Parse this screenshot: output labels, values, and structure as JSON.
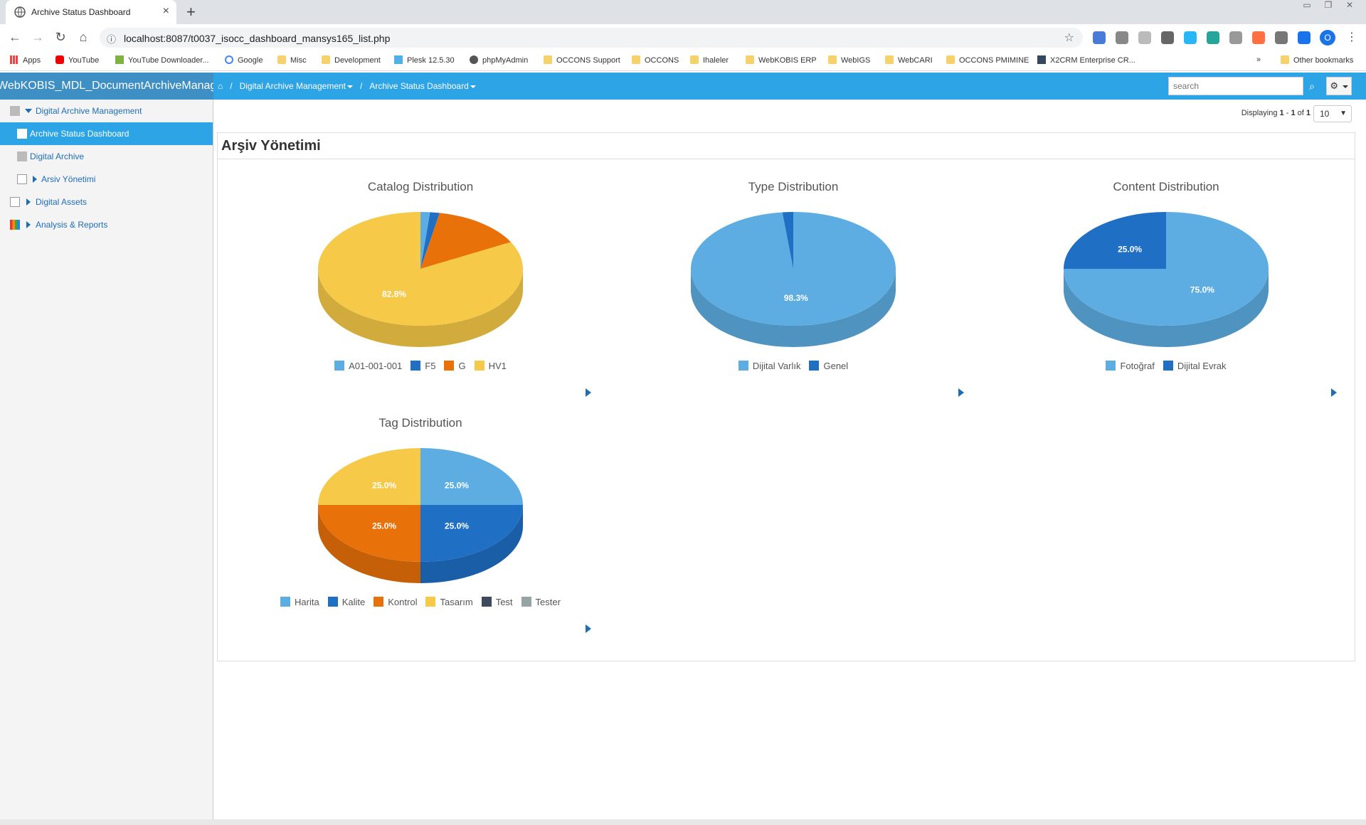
{
  "browser": {
    "tab_title": "Archive Status Dashboard",
    "url": "localhost:8087/t0037_isocc_dashboard_mansys165_list.php",
    "profile_initial": "O",
    "bookmarks": [
      "Apps",
      "YouTube",
      "YouTube Downloader...",
      "Google",
      "Misc",
      "Development",
      "Plesk 12.5.30",
      "phpMyAdmin",
      "OCCONS Support",
      "OCCONS",
      "Ihaleler",
      "WebKOBIS ERP",
      "WebIGS",
      "WebCARI",
      "OCCONS PMIMINE",
      "X2CRM Enterprise CR...",
      "»",
      "Other bookmarks"
    ]
  },
  "app": {
    "brand": "WebKOBIS_MDL_DocumentArchiveManagement",
    "breadcrumb": {
      "home_icon": "home-icon",
      "item1": "Digital Archive Management",
      "item2": "Archive Status Dashboard"
    },
    "search_placeholder": "search",
    "accent": "#2da4e6"
  },
  "sidebar": {
    "items": [
      {
        "label": "Digital Archive Management"
      },
      {
        "label": "Archive Status Dashboard"
      },
      {
        "label": "Digital Archive"
      },
      {
        "label": "Arsiv Yönetimi"
      },
      {
        "label": "Digital Assets"
      },
      {
        "label": "Analysis & Reports"
      }
    ]
  },
  "pagination": {
    "prefix": "Displaying ",
    "from": "1",
    "dash": " - ",
    "to": "1",
    "of": " of ",
    "total": "1",
    "page_size": "10"
  },
  "panel": {
    "title": "Arşiv Yönetimi"
  },
  "chart_data": [
    {
      "type": "pie",
      "title": "Catalog Distribution",
      "categories": [
        "A01-001-001",
        "F5",
        "G",
        "HV1"
      ],
      "values": [
        1.5,
        1.5,
        14.2,
        82.8
      ],
      "labels": [
        "",
        "",
        "",
        "82.8%"
      ],
      "colors": [
        "#5dade2",
        "#1f6fc5",
        "#e8710a",
        "#f7c948"
      ],
      "legend": "bottom"
    },
    {
      "type": "pie",
      "title": "Type Distribution",
      "categories": [
        "Dijital Varlık",
        "Genel"
      ],
      "values": [
        98.3,
        1.7
      ],
      "labels": [
        "98.3%",
        ""
      ],
      "colors": [
        "#5dade2",
        "#1f6fc5"
      ],
      "legend": "bottom"
    },
    {
      "type": "pie",
      "title": "Content Distribution",
      "categories": [
        "Fotoğraf",
        "Dijital Evrak"
      ],
      "values": [
        75.0,
        25.0
      ],
      "labels": [
        "75.0%",
        "25.0%"
      ],
      "colors": [
        "#5dade2",
        "#1f6fc5"
      ],
      "legend": "bottom"
    },
    {
      "type": "pie",
      "title": "Tag Distribution",
      "categories": [
        "Harita",
        "Kalite",
        "Kontrol",
        "Tasarım",
        "Test",
        "Tester"
      ],
      "values": [
        25.0,
        25.0,
        25.0,
        25.0,
        0,
        0
      ],
      "labels": [
        "25.0%",
        "25.0%",
        "25.0%",
        "25.0%",
        "",
        ""
      ],
      "colors": [
        "#5dade2",
        "#1f6fc5",
        "#e8710a",
        "#f7c948",
        "#3d4b5c",
        "#95a5a6"
      ],
      "legend": "bottom"
    }
  ]
}
